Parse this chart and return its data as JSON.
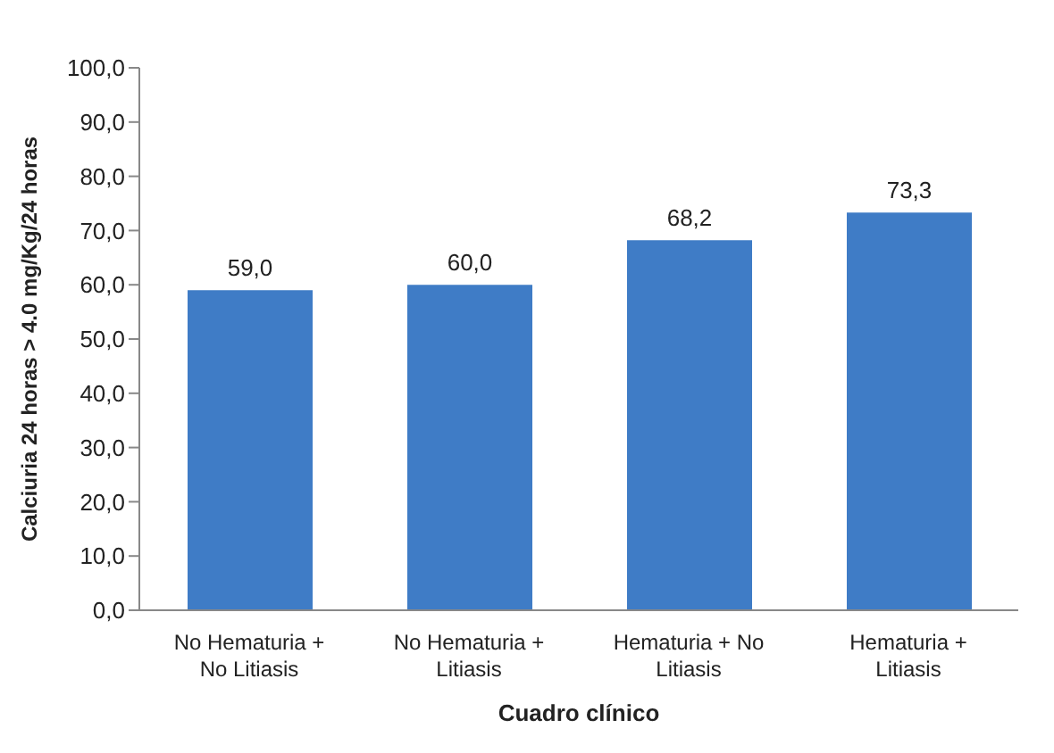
{
  "chart_data": {
    "type": "bar",
    "xlabel": "Cuadro clínico",
    "ylabel": "Calciuria  24 horas > 4.0 mg/Kg/24 horas",
    "categories": [
      "No Hematuria + No Litiasis",
      "No Hematuria + Litiasis",
      "Hematuria + No Litiasis",
      "Hematuria + Litiasis"
    ],
    "values": [
      59.0,
      60.0,
      68.2,
      73.3
    ],
    "value_labels": [
      "59,0",
      "60,0",
      "68,2",
      "73,3"
    ],
    "color": "#3f7cc6",
    "ylim": [
      0,
      100
    ],
    "yticks": [
      {
        "value": 0,
        "label": "0,0"
      },
      {
        "value": 10,
        "label": "10,0"
      },
      {
        "value": 20,
        "label": "20,0"
      },
      {
        "value": 30,
        "label": "30,0"
      },
      {
        "value": 40,
        "label": "40,0"
      },
      {
        "value": 50,
        "label": "50,0"
      },
      {
        "value": 60,
        "label": "60,0"
      },
      {
        "value": 70,
        "label": "70,0"
      },
      {
        "value": 80,
        "label": "80,0"
      },
      {
        "value": 90,
        "label": "90,0"
      },
      {
        "value": 100,
        "label": "100,0"
      }
    ],
    "grid": false
  }
}
